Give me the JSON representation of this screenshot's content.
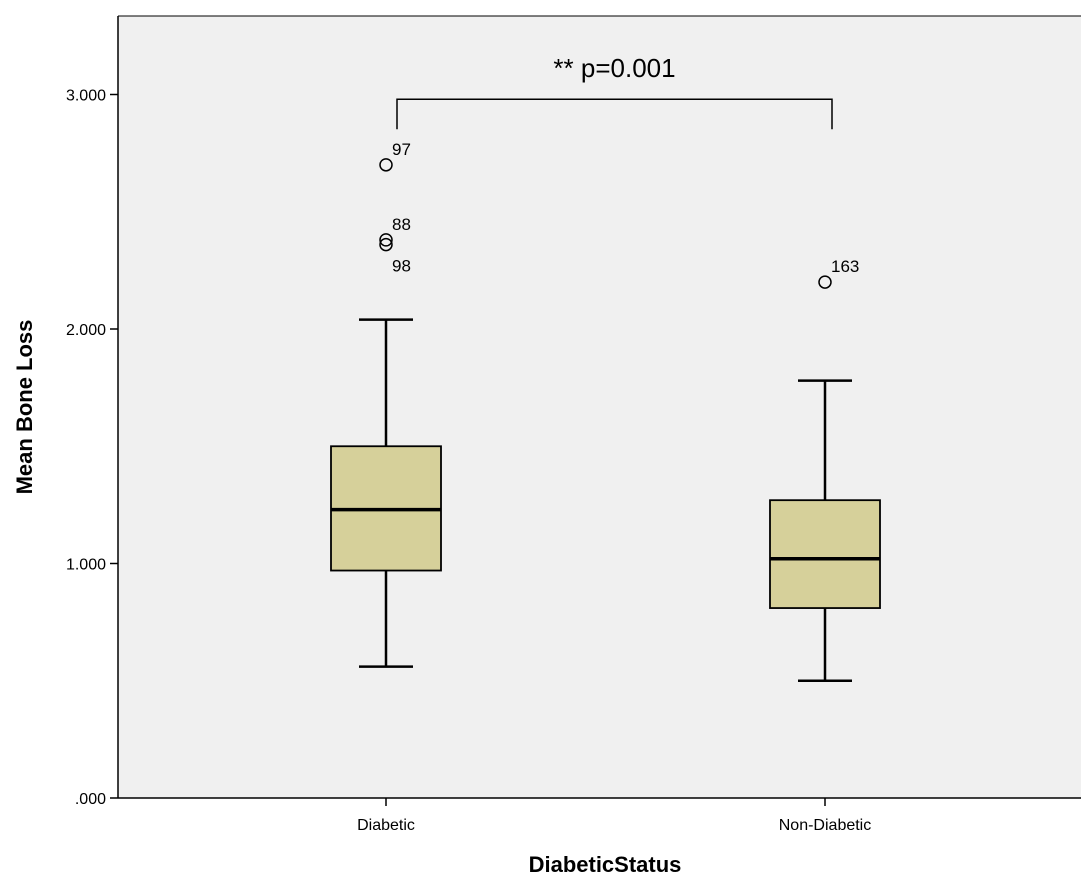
{
  "chart_data": {
    "type": "box",
    "xlabel": "DiabeticStatus",
    "ylabel": "Mean Bone Loss",
    "ylim": [
      0,
      3.3
    ],
    "yticks": [
      0,
      1,
      2,
      3
    ],
    "ytick_labels": [
      ".000",
      "1.000",
      "2.000",
      "3.000"
    ],
    "grid": false,
    "box_color": "#d6d09a",
    "plot_background": "#f0f0f0",
    "categories": [
      "Diabetic",
      "Non-Diabetic"
    ],
    "boxes": [
      {
        "category": "Diabetic",
        "whisker_low": 0.56,
        "q1": 0.97,
        "median": 1.23,
        "q3": 1.5,
        "whisker_high": 2.04,
        "outliers": [
          {
            "value": 2.7,
            "label": "97"
          },
          {
            "value": 2.38,
            "label": "88"
          },
          {
            "value": 2.36,
            "label": "98"
          }
        ]
      },
      {
        "category": "Non-Diabetic",
        "whisker_low": 0.5,
        "q1": 0.81,
        "median": 1.02,
        "q3": 1.27,
        "whisker_high": 1.78,
        "outliers": [
          {
            "value": 2.2,
            "label": "163"
          }
        ]
      }
    ],
    "annotation": {
      "text": "** p=0.001",
      "bracket_y": 2.98,
      "from": "Diabetic",
      "to": "Non-Diabetic"
    }
  }
}
